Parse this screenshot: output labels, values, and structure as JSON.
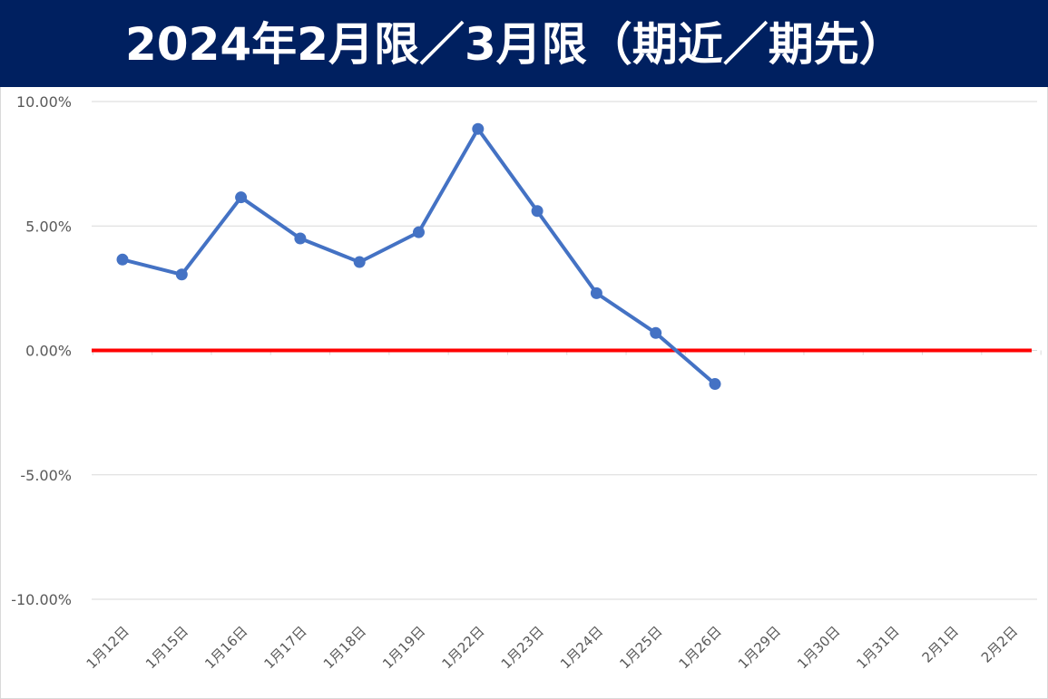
{
  "title": "2024年2月限／3月限（期近／期先）",
  "colors": {
    "title_background": "#002060",
    "title_text": "#ffffff",
    "series_line": "#4472c4",
    "zero_line": "#ff0000",
    "gridline": "#d9d9d9",
    "tick_text": "#595959"
  },
  "chart_data": {
    "type": "line",
    "title": "2024年2月限／3月限（期近／期先）",
    "xlabel": "",
    "ylabel": "",
    "categories": [
      "1月12日",
      "1月15日",
      "1月16日",
      "1月17日",
      "1月18日",
      "1月19日",
      "1月22日",
      "1月23日",
      "1月24日",
      "1月25日",
      "1月26日",
      "1月29日",
      "1月30日",
      "1月31日",
      "2月1日",
      "2月2日"
    ],
    "yticks": [
      "10.00%",
      "5.00%",
      "0.00%",
      "-5.00%",
      "-10.00%"
    ],
    "ylim": [
      -10,
      10
    ],
    "grid": true,
    "legend": "none",
    "series": [
      {
        "values": [
          3.65,
          3.05,
          6.15,
          4.5,
          3.55,
          4.75,
          8.9,
          5.6,
          2.3,
          0.7,
          -1.35,
          null,
          null,
          null,
          null,
          null
        ]
      }
    ],
    "reference_line": {
      "value": 0
    }
  }
}
